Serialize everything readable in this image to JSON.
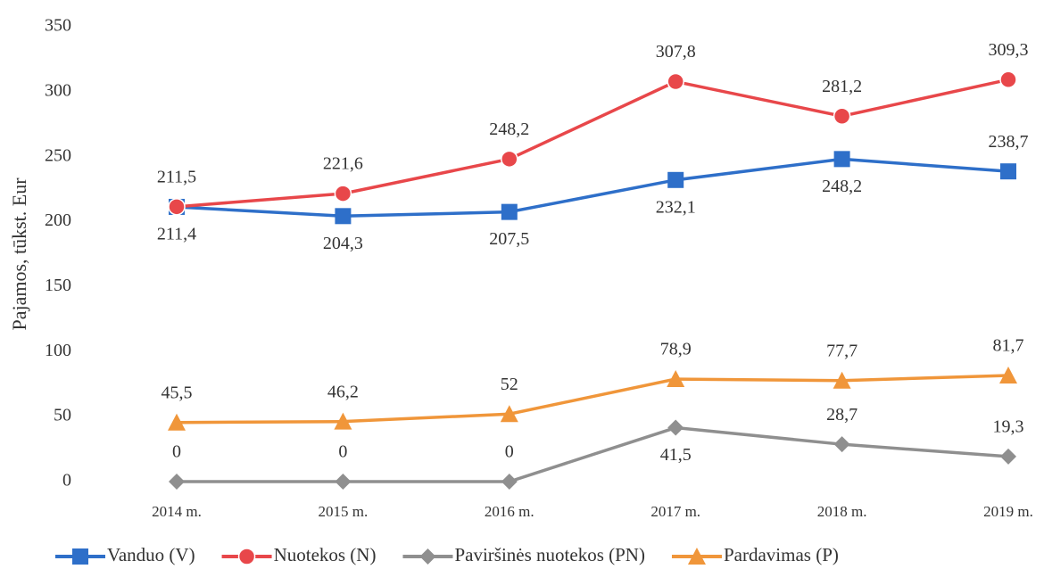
{
  "chart_data": {
    "type": "line",
    "y_label": "Pajamos, tūkst. Eur",
    "categories": [
      "2014 m.",
      "2015 m.",
      "2016 m.",
      "2017 m.",
      "2018 m.",
      "2019 m."
    ],
    "series": [
      {
        "name": "Vanduo (V)",
        "color": "#2e6fc9",
        "marker": "square",
        "values": [
          211.4,
          204.3,
          207.5,
          232.1,
          248.2,
          238.7
        ],
        "value_labels": [
          "211,4",
          "204,3",
          "207,5",
          "232,1",
          "248,2",
          "238,7"
        ]
      },
      {
        "name": "Nuotekos (N)",
        "color": "#e8474a",
        "marker": "circle",
        "values": [
          211.5,
          221.6,
          248.2,
          307.8,
          281.2,
          309.3
        ],
        "value_labels": [
          "211,5",
          "221,6",
          "248,2",
          "307,8",
          "281,2",
          "309,3"
        ]
      },
      {
        "name": "Paviršinės nuotekos (PN)",
        "color": "#8f8f8f",
        "marker": "diamond",
        "values": [
          0,
          0,
          0,
          41.5,
          28.7,
          19.3
        ],
        "value_labels": [
          "0",
          "0",
          "0",
          "41,5",
          "28,7",
          "19,3"
        ]
      },
      {
        "name": "Pardavimas (P)",
        "color": "#f0963a",
        "marker": "triangle",
        "values": [
          45.5,
          46.2,
          52,
          78.9,
          77.7,
          81.7
        ],
        "value_labels": [
          "45,5",
          "46,2",
          "52",
          "78,9",
          "77,7",
          "81,7"
        ]
      }
    ],
    "ylim": [
      0,
      350
    ],
    "yticks": [
      0,
      50,
      100,
      150,
      200,
      250,
      300,
      350
    ],
    "grid": false,
    "legend": "bottom"
  }
}
